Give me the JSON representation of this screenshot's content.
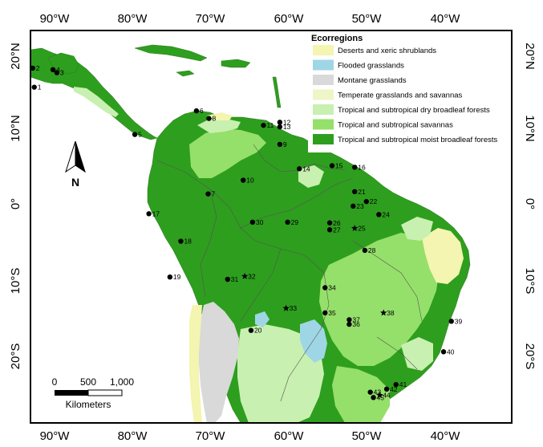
{
  "colors": {
    "deserts": "#f3f5b0",
    "flooded": "#9fd6e6",
    "montane": "#d9d9d9",
    "temperate": "#eef5c6",
    "dry_forest": "#c8f0b0",
    "savanna": "#95e06a",
    "moist_forest": "#2e9e1e",
    "ocean": "#ffffff",
    "border": "#555555"
  },
  "axes": {
    "top_lon": [
      "90°W",
      "80°W",
      "70°W",
      "60°W",
      "50°W",
      "40°W"
    ],
    "bottom_lon": [
      "90°W",
      "80°W",
      "70°W",
      "60°W",
      "50°W",
      "40°W"
    ],
    "left_lat": [
      "20°N",
      "10°N",
      "0°",
      "10°S",
      "20°S"
    ],
    "right_lat": [
      "20°N",
      "10°N",
      "0°",
      "10°S",
      "20°S"
    ]
  },
  "legend": {
    "title": "Ecorregions",
    "items": [
      {
        "key": "deserts",
        "label": "Deserts and xeric shrublands"
      },
      {
        "key": "flooded",
        "label": "Flooded grasslands"
      },
      {
        "key": "montane",
        "label": "Montane grasslands"
      },
      {
        "key": "temperate",
        "label": "Temperate grasslands and savannas"
      },
      {
        "key": "dry_forest",
        "label": "Tropical and subtropical dry broadleaf forests"
      },
      {
        "key": "savanna",
        "label": "Tropical and subtropical savannas"
      },
      {
        "key": "moist_forest",
        "label": "Tropical and subtropical moist broadleaf forests"
      }
    ]
  },
  "scale_bar": {
    "labels": [
      "0",
      "500",
      "1,000"
    ],
    "unit": "Kilometers"
  },
  "north_arrow": {
    "label": "N"
  },
  "sites": [
    {
      "id": "1",
      "lat": 15.3,
      "lon": -92.6,
      "marker": "dot"
    },
    {
      "id": "2",
      "lat": 17.8,
      "lon": -92.8,
      "marker": "dot"
    },
    {
      "id": "3",
      "lat": 17.2,
      "lon": -89.7,
      "marker": "dot"
    },
    {
      "id": "4",
      "lat": 17.6,
      "lon": -90.2,
      "marker": "dot"
    },
    {
      "id": "5",
      "lat": 9.1,
      "lon": -79.7,
      "marker": "dot"
    },
    {
      "id": "6",
      "lat": 12.2,
      "lon": -71.8,
      "marker": "dot"
    },
    {
      "id": "7",
      "lat": 1.3,
      "lon": -70.3,
      "marker": "dot"
    },
    {
      "id": "8",
      "lat": 11.2,
      "lon": -70.2,
      "marker": "dot"
    },
    {
      "id": "9",
      "lat": 7.8,
      "lon": -61.1,
      "marker": "dot"
    },
    {
      "id": "10",
      "lat": 3.1,
      "lon": -65.8,
      "marker": "dot"
    },
    {
      "id": "11",
      "lat": 10.3,
      "lon": -63.2,
      "marker": "dot"
    },
    {
      "id": "12",
      "lat": 10.7,
      "lon": -61.1,
      "marker": "dot"
    },
    {
      "id": "13",
      "lat": 10.1,
      "lon": -61.1,
      "marker": "dot"
    },
    {
      "id": "14",
      "lat": 4.6,
      "lon": -58.6,
      "marker": "dot"
    },
    {
      "id": "15",
      "lat": 5.0,
      "lon": -54.4,
      "marker": "dot"
    },
    {
      "id": "16",
      "lat": 4.8,
      "lon": -51.5,
      "marker": "dot"
    },
    {
      "id": "17",
      "lat": -1.3,
      "lon": -77.9,
      "marker": "dot"
    },
    {
      "id": "18",
      "lat": -4.9,
      "lon": -73.8,
      "marker": "dot"
    },
    {
      "id": "19",
      "lat": -9.6,
      "lon": -75.2,
      "marker": "dot"
    },
    {
      "id": "20",
      "lat": -16.6,
      "lon": -64.8,
      "marker": "dot"
    },
    {
      "id": "21",
      "lat": 1.6,
      "lon": -51.5,
      "marker": "dot"
    },
    {
      "id": "22",
      "lat": 0.3,
      "lon": -50.0,
      "marker": "dot"
    },
    {
      "id": "23",
      "lat": -0.3,
      "lon": -51.7,
      "marker": "dot"
    },
    {
      "id": "24",
      "lat": -1.4,
      "lon": -48.4,
      "marker": "dot"
    },
    {
      "id": "25",
      "lat": -3.2,
      "lon": -51.5,
      "marker": "star"
    },
    {
      "id": "26",
      "lat": -2.5,
      "lon": -54.7,
      "marker": "dot"
    },
    {
      "id": "27",
      "lat": -3.4,
      "lon": -54.7,
      "marker": "dot"
    },
    {
      "id": "28",
      "lat": -6.1,
      "lon": -50.2,
      "marker": "dot"
    },
    {
      "id": "29",
      "lat": -2.4,
      "lon": -60.1,
      "marker": "dot"
    },
    {
      "id": "30",
      "lat": -2.4,
      "lon": -64.6,
      "marker": "dot"
    },
    {
      "id": "31",
      "lat": -9.9,
      "lon": -67.8,
      "marker": "dot"
    },
    {
      "id": "32",
      "lat": -9.5,
      "lon": -65.6,
      "marker": "star"
    },
    {
      "id": "33",
      "lat": -13.7,
      "lon": -60.3,
      "marker": "star"
    },
    {
      "id": "34",
      "lat": -11.0,
      "lon": -55.3,
      "marker": "dot"
    },
    {
      "id": "35",
      "lat": -14.3,
      "lon": -55.3,
      "marker": "dot"
    },
    {
      "id": "36",
      "lat": -15.8,
      "lon": -52.2,
      "marker": "dot"
    },
    {
      "id": "37",
      "lat": -15.2,
      "lon": -52.2,
      "marker": "dot"
    },
    {
      "id": "38",
      "lat": -14.3,
      "lon": -47.8,
      "marker": "star"
    },
    {
      "id": "39",
      "lat": -15.4,
      "lon": -39.1,
      "marker": "dot"
    },
    {
      "id": "40",
      "lat": -19.4,
      "lon": -40.1,
      "marker": "dot"
    },
    {
      "id": "41",
      "lat": -23.7,
      "lon": -46.2,
      "marker": "dot"
    },
    {
      "id": "42",
      "lat": -24.3,
      "lon": -47.4,
      "marker": "dot"
    },
    {
      "id": "43",
      "lat": -24.7,
      "lon": -49.5,
      "marker": "dot"
    },
    {
      "id": "44",
      "lat": -25.1,
      "lon": -48.3,
      "marker": "star"
    },
    {
      "id": "45",
      "lat": -25.4,
      "lon": -49.1,
      "marker": "dot"
    }
  ]
}
